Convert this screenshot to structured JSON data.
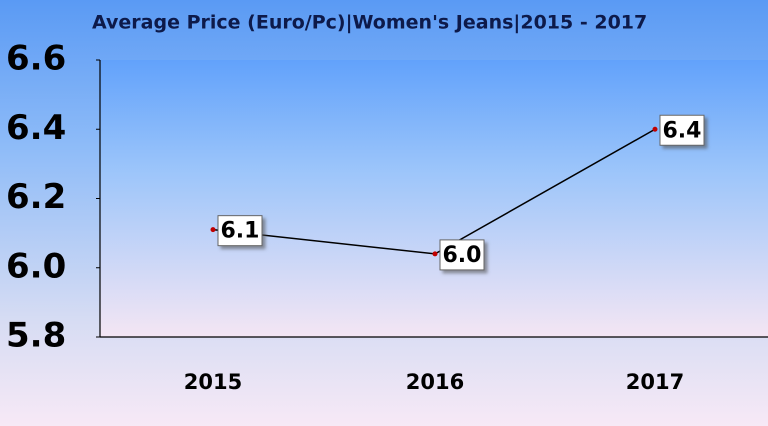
{
  "chart_data": {
    "type": "line",
    "title": "Average Price (Euro/Pc)|Women's Jeans|2015 - 2017",
    "categories": [
      "2015",
      "2016",
      "2017"
    ],
    "values": [
      6.11,
      6.04,
      6.4
    ],
    "value_labels": [
      "6.1",
      "6.0",
      "6.4"
    ],
    "color": "#000000",
    "marker_color": "#c00000",
    "ylim": [
      5.8,
      6.6
    ],
    "yticks": [
      5.8,
      {
        "value": 6,
        "label": "6.0"
      },
      6.2,
      6.4,
      6.6
    ],
    "grid": false
  }
}
